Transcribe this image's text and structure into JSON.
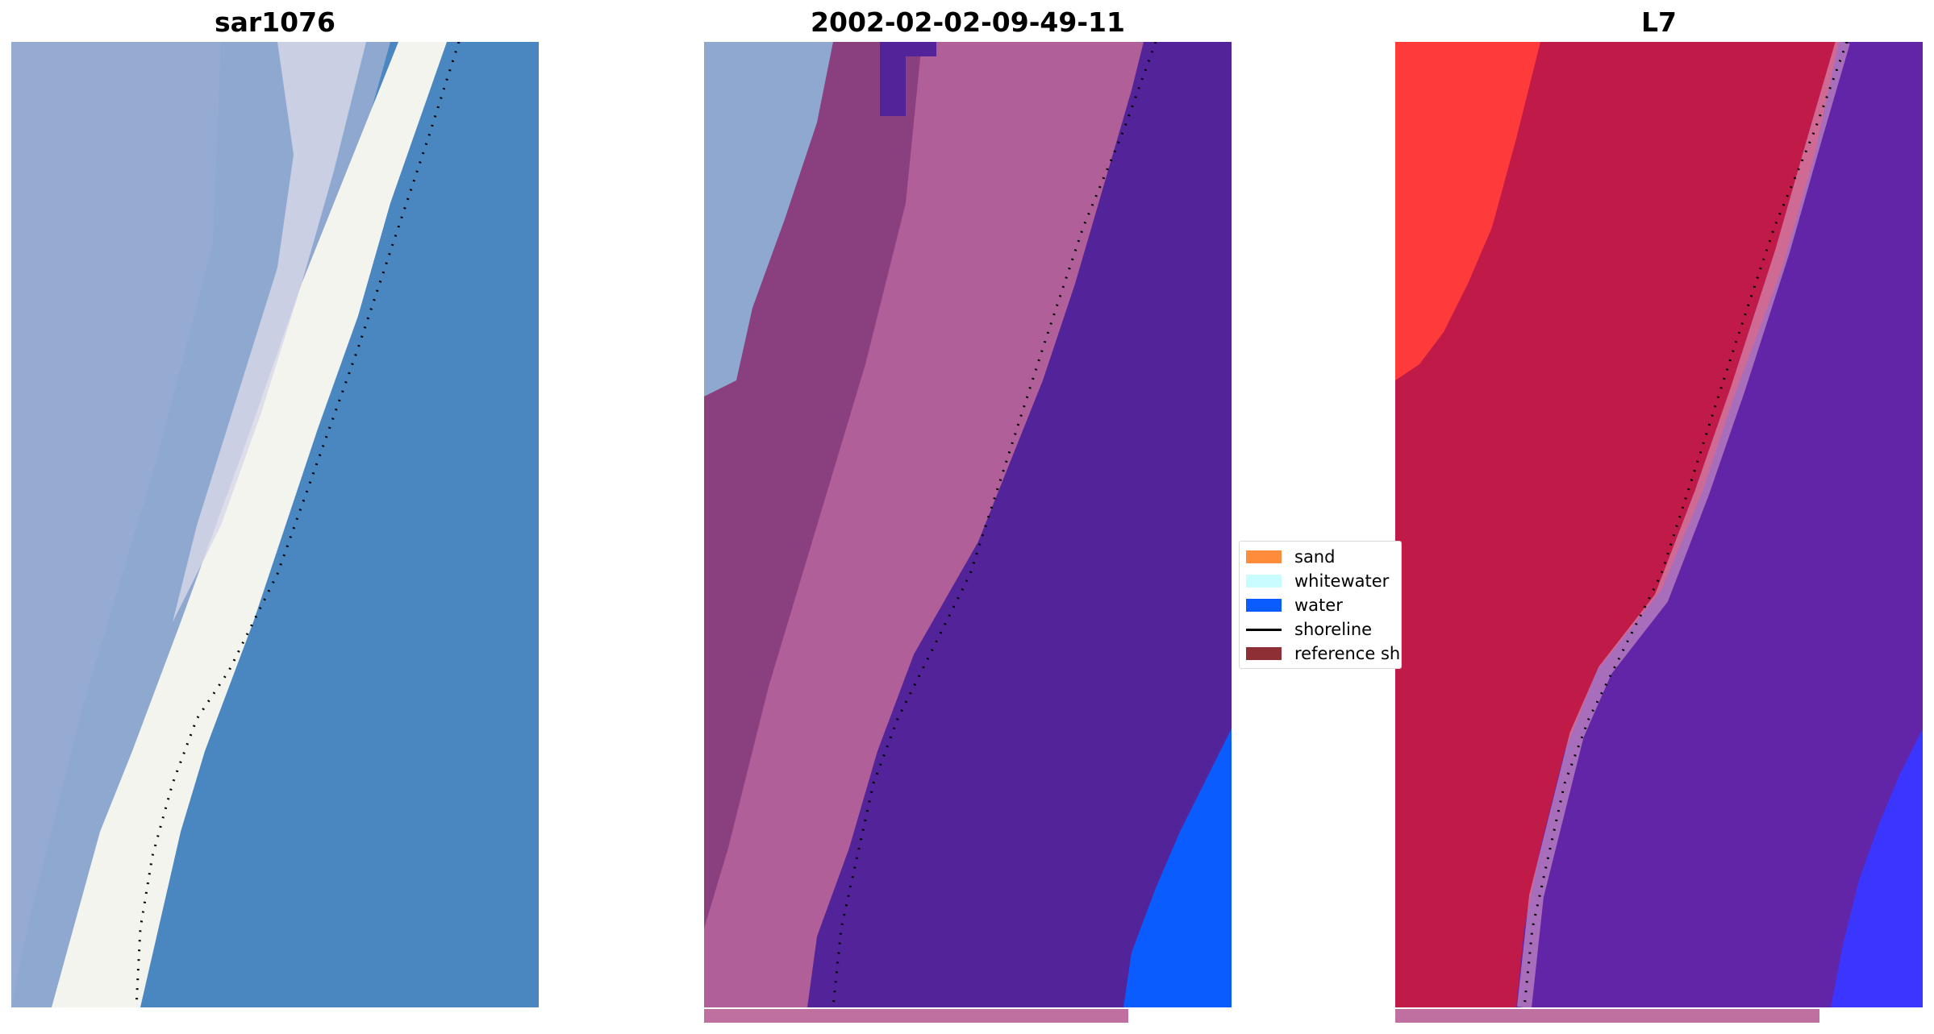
{
  "panels": [
    {
      "title": "sar1076"
    },
    {
      "title": "2002-02-02-09-49-11"
    },
    {
      "title": "L7"
    }
  ],
  "legend": {
    "items": [
      {
        "label": "sand",
        "color": "#ff8c3a",
        "kind": "patch"
      },
      {
        "label": "whitewater",
        "color": "#c8fcff",
        "kind": "patch"
      },
      {
        "label": "water",
        "color": "#0a5cff",
        "kind": "patch"
      },
      {
        "label": "shoreline",
        "color": "#000000",
        "kind": "line"
      },
      {
        "label": "reference sh",
        "color": "#8e2f35",
        "kind": "patch"
      }
    ]
  },
  "colors": {
    "rgb_water": "#4a86c0",
    "rgb_land": "#8fa8d0",
    "rgb_surf": "#f4f4ee",
    "class_sand": "#b05f98",
    "class_sand_dark": "#8a3f7e",
    "class_water": "#53239a",
    "class_deep_water": "#0a5cff",
    "l7_land": "#c01a48",
    "l7_bright": "#ff3a3a",
    "l7_water": "#6225a8",
    "l7_deep": "#3a36ff",
    "strip": "#c070a0"
  }
}
